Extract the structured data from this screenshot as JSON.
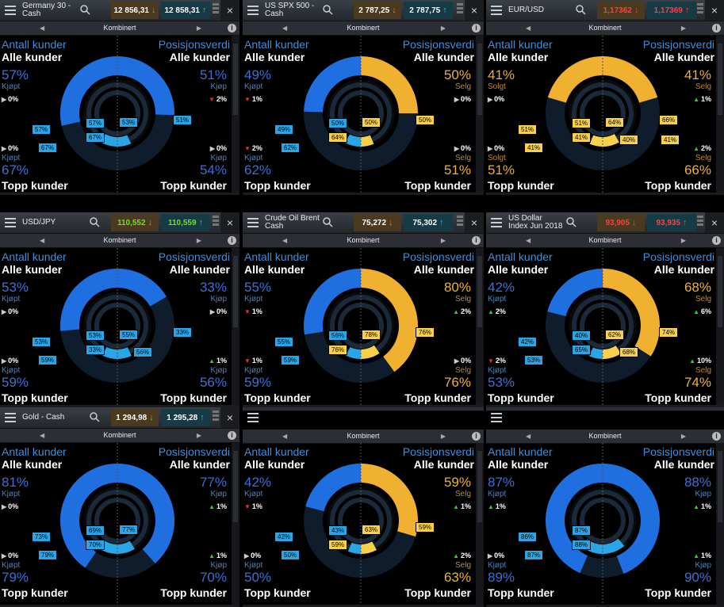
{
  "labels": {
    "antall_kunder": "Antall kunder",
    "posisjonsverdi": "Posisjonsverdi",
    "alle_kunder": "Alle kunder",
    "topp_kunder": "Topp kunder",
    "kombinert": "Kombinert"
  },
  "colors": {
    "buy_primary": "#1f6fe0",
    "buy_light": "#2aa6e6",
    "sell_primary": "#f0b030",
    "sell_light": "#f8d04a",
    "down_arrow": "#f07a2a",
    "up_arrow": "#20c0c0",
    "red_price": "#ff4040",
    "green_price": "#70e020"
  },
  "panels": [
    {
      "title": "Germany 30 - Cash",
      "sell_price": "12 856,31",
      "buy_price": "12 858,31",
      "price_color": "white",
      "top_left_pct": "57%",
      "top_left_label": "Kjøpt",
      "top_left_dir": "buy",
      "top_left_change": "0%",
      "top_left_change_dir": "none",
      "top_right_pct": "51%",
      "top_right_label": "Kjøp",
      "top_right_dir": "buy",
      "top_right_change": "2%",
      "top_right_change_dir": "down",
      "bottom_left_pct": "67%",
      "bottom_left_label": "Kjøpt",
      "bottom_left_dir": "buy",
      "bottom_left_change": "0%",
      "bottom_left_change_dir": "none",
      "bottom_right_pct": "54%",
      "bottom_right_label": "Kjøp",
      "bottom_right_dir": "buy",
      "bottom_right_change": "0%",
      "bottom_right_change_dir": "none",
      "ring": {
        "tl": 57,
        "tl_dir": "buy",
        "tr": 51,
        "tr_dir": "buy",
        "bl": 67,
        "bl_dir": "buy",
        "br": 54,
        "br_dir": "buy"
      },
      "tags": [
        "57%",
        "67%",
        "57%",
        "67%",
        "53%",
        "51%"
      ]
    },
    {
      "title": "US SPX 500 - Cash",
      "sell_price": "2 787,25",
      "buy_price": "2 787,75",
      "price_color": "white",
      "top_left_pct": "49%",
      "top_left_label": "Kjøpt",
      "top_left_dir": "buy",
      "top_left_change": "1%",
      "top_left_change_dir": "down",
      "top_right_pct": "50%",
      "top_right_label": "Selg",
      "top_right_dir": "sell",
      "top_right_change": "0%",
      "top_right_change_dir": "none",
      "bottom_left_pct": "62%",
      "bottom_left_label": "Kjøpt",
      "bottom_left_dir": "buy",
      "bottom_left_change": "2%",
      "bottom_left_change_dir": "down",
      "bottom_right_pct": "51%",
      "bottom_right_label": "Selg",
      "bottom_right_dir": "sell",
      "bottom_right_change": "0%",
      "bottom_right_change_dir": "none",
      "ring": {
        "tl": 49,
        "tl_dir": "buy",
        "tr": 50,
        "tr_dir": "sell",
        "bl": 62,
        "bl_dir": "buy",
        "br": 51,
        "br_dir": "sell"
      },
      "tags": [
        "49%",
        "62%",
        "50%",
        "64%",
        "50%",
        "50%"
      ]
    },
    {
      "title": "EUR/USD",
      "sell_price": "1,17362",
      "buy_price": "1,17369",
      "price_color": "red",
      "top_left_pct": "41%",
      "top_left_label": "Solgt",
      "top_left_dir": "sell",
      "top_left_change": "0%",
      "top_left_change_dir": "none",
      "top_right_pct": "41%",
      "top_right_label": "Selg",
      "top_right_dir": "sell",
      "top_right_change": "1%",
      "top_right_change_dir": "up",
      "bottom_left_pct": "51%",
      "bottom_left_label": "Solgt",
      "bottom_left_dir": "sell",
      "bottom_left_change": "0%",
      "bottom_left_change_dir": "none",
      "bottom_right_pct": "66%",
      "bottom_right_label": "Selg",
      "bottom_right_dir": "sell",
      "bottom_right_change": "2%",
      "bottom_right_change_dir": "up",
      "ring": {
        "tl": 41,
        "tl_dir": "sell",
        "tr": 41,
        "tr_dir": "sell",
        "bl": 51,
        "bl_dir": "sell",
        "br": 66,
        "br_dir": "sell"
      },
      "tags": [
        "51%",
        "41%",
        "51%",
        "41%",
        "64%",
        "66%",
        "40%",
        "41%"
      ]
    },
    {
      "title": "USD/JPY",
      "sell_price": "110,552",
      "buy_price": "110,559",
      "price_color": "green",
      "top_left_pct": "53%",
      "top_left_label": "Kjøpt",
      "top_left_dir": "buy",
      "top_left_change": "0%",
      "top_left_change_dir": "none",
      "top_right_pct": "33%",
      "top_right_label": "Kjøp",
      "top_right_dir": "buy",
      "top_right_change": "0%",
      "top_right_change_dir": "none",
      "bottom_left_pct": "59%",
      "bottom_left_label": "Kjøpt",
      "bottom_left_dir": "buy",
      "bottom_left_change": "0%",
      "bottom_left_change_dir": "none",
      "bottom_right_pct": "56%",
      "bottom_right_label": "Kjøp",
      "bottom_right_dir": "buy",
      "bottom_right_change": "1%",
      "bottom_right_change_dir": "up",
      "ring": {
        "tl": 53,
        "tl_dir": "buy",
        "tr": 33,
        "tr_dir": "buy",
        "bl": 59,
        "bl_dir": "buy",
        "br": 56,
        "br_dir": "buy"
      },
      "tags": [
        "53%",
        "59%",
        "53%",
        "33%",
        "55%",
        "33%",
        "56%"
      ]
    },
    {
      "title": "Crude Oil Brent Cash",
      "sell_price": "75,272",
      "buy_price": "75,302",
      "price_color": "white",
      "top_left_pct": "55%",
      "top_left_label": "Kjøpt",
      "top_left_dir": "buy",
      "top_left_change": "1%",
      "top_left_change_dir": "down",
      "top_right_pct": "80%",
      "top_right_label": "Selg",
      "top_right_dir": "sell",
      "top_right_change": "2%",
      "top_right_change_dir": "up",
      "bottom_left_pct": "59%",
      "bottom_left_label": "Kjøpt",
      "bottom_left_dir": "buy",
      "bottom_left_change": "1%",
      "bottom_left_change_dir": "down",
      "bottom_right_pct": "76%",
      "bottom_right_label": "Selg",
      "bottom_right_dir": "sell",
      "bottom_right_change": "0%",
      "bottom_right_change_dir": "none",
      "ring": {
        "tl": 55,
        "tl_dir": "buy",
        "tr": 80,
        "tr_dir": "sell",
        "bl": 59,
        "bl_dir": "buy",
        "br": 76,
        "br_dir": "sell"
      },
      "tags": [
        "55%",
        "59%",
        "56%",
        "76%",
        "78%",
        "76%"
      ]
    },
    {
      "title": "US Dollar Index Jun 2018",
      "sell_price": "93,905",
      "buy_price": "93,935",
      "price_color": "red",
      "top_left_pct": "42%",
      "top_left_label": "Kjøpt",
      "top_left_dir": "buy",
      "top_left_change": "2%",
      "top_left_change_dir": "up",
      "top_right_pct": "68%",
      "top_right_label": "Selg",
      "top_right_dir": "sell",
      "top_right_change": "6%",
      "top_right_change_dir": "up",
      "bottom_left_pct": "53%",
      "bottom_left_label": "Kjøpt",
      "bottom_left_dir": "buy",
      "bottom_left_change": "2%",
      "bottom_left_change_dir": "down",
      "bottom_right_pct": "74%",
      "bottom_right_label": "Selg",
      "bottom_right_dir": "sell",
      "bottom_right_change": "10%",
      "bottom_right_change_dir": "up",
      "ring": {
        "tl": 42,
        "tl_dir": "buy",
        "tr": 68,
        "tr_dir": "sell",
        "bl": 53,
        "bl_dir": "buy",
        "br": 74,
        "br_dir": "sell"
      },
      "tags": [
        "42%",
        "53%",
        "40%",
        "65%",
        "62%",
        "74%",
        "68%"
      ]
    },
    {
      "title": "Gold - Cash",
      "sell_price": "1 294,98",
      "buy_price": "1 295,28",
      "price_color": "white",
      "top_left_pct": "81%",
      "top_left_label": "Kjøpt",
      "top_left_dir": "buy",
      "top_left_change": "0%",
      "top_left_change_dir": "none",
      "top_right_pct": "77%",
      "top_right_label": "Kjøp",
      "top_right_dir": "buy",
      "top_right_change": "1%",
      "top_right_change_dir": "up",
      "bottom_left_pct": "79%",
      "bottom_left_label": "Kjøpt",
      "bottom_left_dir": "buy",
      "bottom_left_change": "0%",
      "bottom_left_change_dir": "none",
      "bottom_right_pct": "70%",
      "bottom_right_label": "Kjøp",
      "bottom_right_dir": "buy",
      "bottom_right_change": "1%",
      "bottom_right_change_dir": "up",
      "ring": {
        "tl": 81,
        "tl_dir": "buy",
        "tr": 77,
        "tr_dir": "buy",
        "bl": 79,
        "bl_dir": "buy",
        "br": 70,
        "br_dir": "buy"
      },
      "tags": [
        "73%",
        "79%",
        "69%",
        "70%",
        "77%"
      ]
    },
    {
      "title": "",
      "sell_price": "",
      "buy_price": "",
      "price_color": "white",
      "top_left_pct": "42%",
      "top_left_label": "Kjøpt",
      "top_left_dir": "buy",
      "top_left_change": "1%",
      "top_left_change_dir": "down",
      "top_right_pct": "59%",
      "top_right_label": "Selg",
      "top_right_dir": "sell",
      "top_right_change": "1%",
      "top_right_change_dir": "up",
      "bottom_left_pct": "50%",
      "bottom_left_label": "Kjøpt",
      "bottom_left_dir": "buy",
      "bottom_left_change": "0%",
      "bottom_left_change_dir": "none",
      "bottom_right_pct": "63%",
      "bottom_right_label": "Selg",
      "bottom_right_dir": "sell",
      "bottom_right_change": "2%",
      "bottom_right_change_dir": "up",
      "ring": {
        "tl": 42,
        "tl_dir": "buy",
        "tr": 59,
        "tr_dir": "sell",
        "bl": 50,
        "bl_dir": "buy",
        "br": 63,
        "br_dir": "sell"
      },
      "tags": [
        "42%",
        "50%",
        "43%",
        "59%",
        "63%",
        "59%"
      ]
    },
    {
      "title": "",
      "sell_price": "",
      "buy_price": "",
      "price_color": "white",
      "top_left_pct": "87%",
      "top_left_label": "Kjøpt",
      "top_left_dir": "buy",
      "top_left_change": "1%",
      "top_left_change_dir": "up",
      "top_right_pct": "88%",
      "top_right_label": "Kjøp",
      "top_right_dir": "buy",
      "top_right_change": "1%",
      "top_right_change_dir": "up",
      "bottom_left_pct": "89%",
      "bottom_left_label": "Kjøpt",
      "bottom_left_dir": "buy",
      "bottom_left_change": "0%",
      "bottom_left_change_dir": "none",
      "bottom_right_pct": "90%",
      "bottom_right_label": "Kjøp",
      "bottom_right_dir": "buy",
      "bottom_right_change": "1%",
      "bottom_right_change_dir": "up",
      "ring": {
        "tl": 87,
        "tl_dir": "buy",
        "tr": 88,
        "tr_dir": "buy",
        "bl": 89,
        "bl_dir": "buy",
        "br": 90,
        "br_dir": "buy"
      },
      "tags": [
        "86%",
        "87%",
        "87%",
        "88%"
      ]
    }
  ]
}
